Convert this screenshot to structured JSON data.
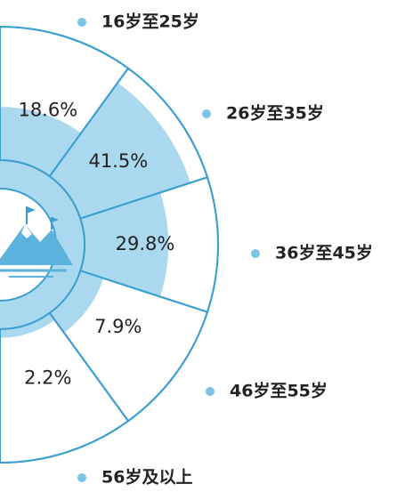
{
  "chart_data": {
    "type": "radial_bar",
    "categories": [
      "16岁至25岁",
      "26岁至35岁",
      "36岁至45岁",
      "46岁至55岁",
      "56岁及以上"
    ],
    "values": [
      18.6,
      41.5,
      29.8,
      7.9,
      2.2
    ],
    "value_labels": [
      "18.6%",
      "41.5%",
      "29.8%",
      "7.9%",
      "2.2%"
    ],
    "color": "#a9d8ef",
    "border_color": "#3c9fd0"
  }
}
